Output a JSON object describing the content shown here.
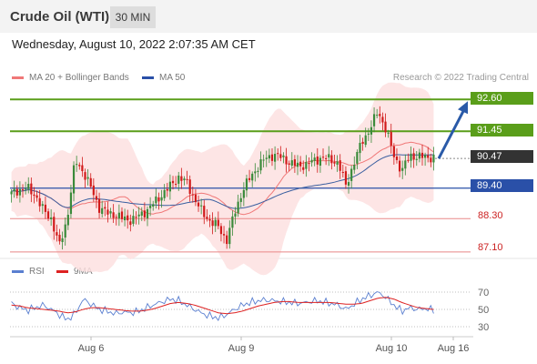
{
  "header": {
    "title": "Crude Oil (WTI)",
    "timeframe": "30 MIN"
  },
  "datetime": "Wednesday, August 10, 2022 2:07:35 AM CET",
  "credit": "Research © 2022 Trading Central",
  "legend": {
    "ma20": "MA 20 + Bollinger Bands",
    "ma50": "MA 50",
    "rsi": "RSI",
    "ma9": "9MA"
  },
  "colors": {
    "bullish": "#2e7d32",
    "bearish": "#c62828",
    "candle_green": "#3a8a3a",
    "candle_red": "#d11a1a",
    "resistance": "#5a9e1a",
    "support_blue": "#2a50a8",
    "support_red": "#e88888",
    "last_price": "#333333",
    "ma20": "#f07878",
    "ma50": "#3a5fa0",
    "rsi": "#5a7fd0",
    "rsi_ma": "#dd2222",
    "bands_fill": "#fde0e0"
  },
  "levels": [
    {
      "label": "92.60",
      "style": "box-green"
    },
    {
      "label": "91.45",
      "style": "box-green"
    },
    {
      "label": "90.47",
      "style": "box-dark"
    },
    {
      "label": "89.40",
      "style": "box-blue"
    },
    {
      "label": "88.30",
      "style": "plain-red"
    },
    {
      "label": "87.10",
      "style": "plain-red"
    }
  ],
  "chart_data": [
    {
      "type": "candlestick",
      "title": "",
      "ylim": [
        86.9,
        93.0
      ],
      "x_ticks": [
        "Aug 6",
        "Aug 9",
        "Aug 10",
        "Aug 16"
      ],
      "horizontal_levels": [
        92.6,
        91.45,
        90.47,
        89.4,
        88.3,
        87.1
      ],
      "forecast_arrow": {
        "from": 90.47,
        "to": 92.6
      },
      "series": [
        {
          "name": "MA 20 + Bollinger Bands"
        },
        {
          "name": "MA 50"
        }
      ],
      "close_path": [
        89.2,
        89.35,
        89.4,
        89.15,
        88.6,
        88.3,
        87.3,
        88.3,
        90.4,
        90.0,
        89.4,
        88.7,
        88.5,
        88.45,
        88.3,
        88.25,
        88.4,
        88.6,
        88.9,
        89.2,
        89.5,
        89.8,
        89.6,
        89.0,
        88.5,
        88.2,
        88.0,
        87.5,
        88.5,
        89.3,
        89.8,
        90.2,
        90.5,
        90.6,
        90.5,
        90.3,
        90.2,
        90.25,
        90.4,
        90.5,
        90.45,
        90.3,
        89.5,
        90.3,
        91.1,
        91.5,
        92.2,
        91.5,
        90.6,
        90.0,
        90.6,
        90.5,
        90.55,
        90.47
      ]
    },
    {
      "type": "line",
      "title": "",
      "yticks": [
        70,
        50,
        30
      ],
      "ylim": [
        20,
        80
      ],
      "series": [
        {
          "name": "RSI"
        },
        {
          "name": "9MA"
        }
      ],
      "rsi_path": [
        57,
        52,
        49,
        52,
        55,
        50,
        44,
        38,
        45,
        62,
        56,
        50,
        48,
        45,
        47,
        46,
        48,
        52,
        56,
        59,
        62,
        60,
        55,
        50,
        45,
        42,
        40,
        44,
        50,
        55,
        58,
        60,
        61,
        60,
        59,
        58,
        57,
        58,
        60,
        59,
        57,
        55,
        50,
        56,
        62,
        66,
        70,
        64,
        55,
        48,
        52,
        50,
        51,
        49
      ],
      "ma9_path": [
        55,
        54,
        52,
        51,
        50,
        49,
        48,
        46,
        47,
        50,
        52,
        52,
        51,
        50,
        49,
        48,
        48,
        49,
        51,
        54,
        57,
        58,
        57,
        55,
        52,
        49,
        46,
        45,
        46,
        48,
        51,
        54,
        56,
        58,
        59,
        59,
        58,
        58,
        58,
        58,
        58,
        57,
        56,
        56,
        57,
        60,
        63,
        64,
        62,
        58,
        55,
        52,
        51,
        50
      ]
    }
  ]
}
